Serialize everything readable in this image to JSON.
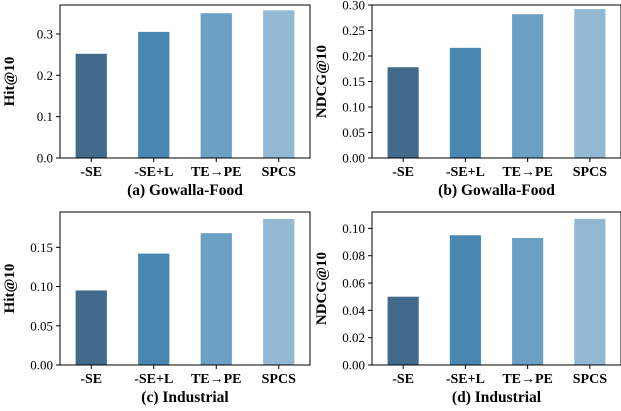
{
  "chart_data": [
    {
      "type": "bar",
      "title": "(a) Gowalla-Food",
      "xlabel": "",
      "ylabel": "Hit@10",
      "categories": [
        "-SE",
        "-SE+L",
        "TE→PE",
        "SPCS"
      ],
      "values": [
        0.252,
        0.305,
        0.35,
        0.357
      ],
      "ylim": [
        0,
        0.37
      ],
      "yticks": [
        0.0,
        0.1,
        0.2,
        0.3
      ],
      "ytick_labels": [
        "0.0",
        "0.1",
        "0.2",
        "0.3"
      ],
      "colors": [
        "#426a8c",
        "#4987b3",
        "#6aa0c4",
        "#92b8d3"
      ],
      "grid": false
    },
    {
      "type": "bar",
      "title": "(b) Gowalla-Food",
      "xlabel": "",
      "ylabel": "NDCG@10",
      "categories": [
        "-SE",
        "-SE+L",
        "TE→PE",
        "SPCS"
      ],
      "values": [
        0.178,
        0.216,
        0.282,
        0.292
      ],
      "ylim": [
        0,
        0.3
      ],
      "yticks": [
        0.0,
        0.05,
        0.1,
        0.15,
        0.2,
        0.25,
        0.3
      ],
      "ytick_labels": [
        "0.00",
        "0.05",
        "0.10",
        "0.15",
        "0.20",
        "0.25",
        "0.30"
      ],
      "colors": [
        "#426a8c",
        "#4987b3",
        "#6aa0c4",
        "#92b8d3"
      ],
      "grid": false
    },
    {
      "type": "bar",
      "title": "(c) Industrial",
      "xlabel": "",
      "ylabel": "Hit@10",
      "categories": [
        "-SE",
        "-SE+L",
        "TE→PE",
        "SPCS"
      ],
      "values": [
        0.095,
        0.142,
        0.168,
        0.186
      ],
      "ylim": [
        0,
        0.195
      ],
      "yticks": [
        0.0,
        0.05,
        0.1,
        0.15
      ],
      "ytick_labels": [
        "0.00",
        "0.05",
        "0.10",
        "0.15"
      ],
      "colors": [
        "#426a8c",
        "#4987b3",
        "#6aa0c4",
        "#92b8d3"
      ],
      "grid": false
    },
    {
      "type": "bar",
      "title": "(d) Industrial",
      "xlabel": "",
      "ylabel": "NDCG@10",
      "categories": [
        "-SE",
        "-SE+L",
        "TE→PE",
        "SPCS"
      ],
      "values": [
        0.05,
        0.095,
        0.093,
        0.107
      ],
      "ylim": [
        0,
        0.112
      ],
      "yticks": [
        0.0,
        0.02,
        0.04,
        0.06,
        0.08,
        0.1
      ],
      "ytick_labels": [
        "0.00",
        "0.02",
        "0.04",
        "0.06",
        "0.08",
        "0.10"
      ],
      "colors": [
        "#426a8c",
        "#4987b3",
        "#6aa0c4",
        "#92b8d3"
      ],
      "grid": false
    }
  ]
}
